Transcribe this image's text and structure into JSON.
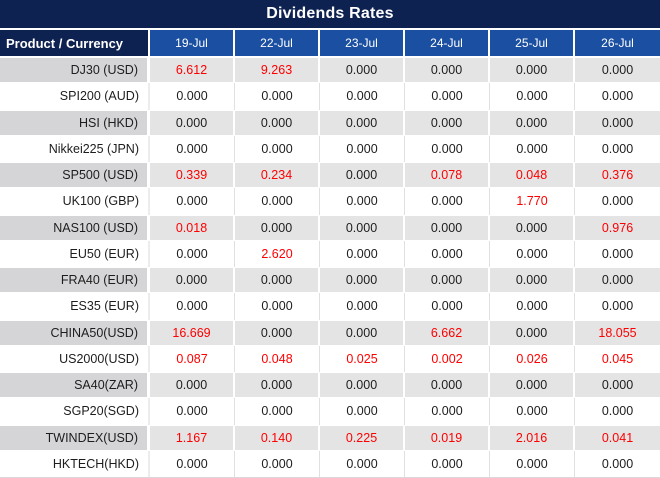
{
  "table": {
    "title": "Dividends Rates",
    "header": {
      "product_label": "Product / Currency",
      "dates": [
        "19-Jul",
        "22-Jul",
        "23-Jul",
        "24-Jul",
        "25-Jul",
        "26-Jul"
      ]
    },
    "rows": [
      {
        "product": "DJ30 (USD)",
        "values": [
          "6.612",
          "9.263",
          "0.000",
          "0.000",
          "0.000",
          "0.000"
        ]
      },
      {
        "product": "SPI200 (AUD)",
        "values": [
          "0.000",
          "0.000",
          "0.000",
          "0.000",
          "0.000",
          "0.000"
        ]
      },
      {
        "product": "HSI (HKD)",
        "values": [
          "0.000",
          "0.000",
          "0.000",
          "0.000",
          "0.000",
          "0.000"
        ]
      },
      {
        "product": "Nikkei225 (JPN)",
        "values": [
          "0.000",
          "0.000",
          "0.000",
          "0.000",
          "0.000",
          "0.000"
        ]
      },
      {
        "product": "SP500 (USD)",
        "values": [
          "0.339",
          "0.234",
          "0.000",
          "0.078",
          "0.048",
          "0.376"
        ]
      },
      {
        "product": "UK100 (GBP)",
        "values": [
          "0.000",
          "0.000",
          "0.000",
          "0.000",
          "1.770",
          "0.000"
        ]
      },
      {
        "product": "NAS100 (USD)",
        "values": [
          "0.018",
          "0.000",
          "0.000",
          "0.000",
          "0.000",
          "0.976"
        ]
      },
      {
        "product": "EU50 (EUR)",
        "values": [
          "0.000",
          "2.620",
          "0.000",
          "0.000",
          "0.000",
          "0.000"
        ]
      },
      {
        "product": "FRA40 (EUR)",
        "values": [
          "0.000",
          "0.000",
          "0.000",
          "0.000",
          "0.000",
          "0.000"
        ]
      },
      {
        "product": "ES35 (EUR)",
        "values": [
          "0.000",
          "0.000",
          "0.000",
          "0.000",
          "0.000",
          "0.000"
        ]
      },
      {
        "product": "CHINA50(USD)",
        "values": [
          "16.669",
          "0.000",
          "0.000",
          "6.662",
          "0.000",
          "18.055"
        ]
      },
      {
        "product": "US2000(USD)",
        "values": [
          "0.087",
          "0.048",
          "0.025",
          "0.002",
          "0.026",
          "0.045"
        ]
      },
      {
        "product": "SA40(ZAR)",
        "values": [
          "0.000",
          "0.000",
          "0.000",
          "0.000",
          "0.000",
          "0.000"
        ]
      },
      {
        "product": "SGP20(SGD)",
        "values": [
          "0.000",
          "0.000",
          "0.000",
          "0.000",
          "0.000",
          "0.000"
        ]
      },
      {
        "product": "TWINDEX(USD)",
        "values": [
          "1.167",
          "0.140",
          "0.225",
          "0.019",
          "2.016",
          "0.041"
        ]
      },
      {
        "product": "HKTECH(HKD)",
        "values": [
          "0.000",
          "0.000",
          "0.000",
          "0.000",
          "0.000",
          "0.000"
        ]
      }
    ],
    "colors": {
      "title_bg": "#0e2251",
      "header_bg": "#1b4fa1",
      "nonzero_value_red": "#fe0000",
      "zero_value_black": "#1d1d1d",
      "alt_row_product_bg": "#d5d5d8",
      "alt_row_value_bg": "#e4e4e4"
    }
  },
  "chart_data": {
    "type": "table",
    "title": "Dividends Rates",
    "columns": [
      "Product / Currency",
      "19-Jul",
      "22-Jul",
      "23-Jul",
      "24-Jul",
      "25-Jul",
      "26-Jul"
    ],
    "rows": [
      [
        "DJ30 (USD)",
        6.612,
        9.263,
        0.0,
        0.0,
        0.0,
        0.0
      ],
      [
        "SPI200 (AUD)",
        0.0,
        0.0,
        0.0,
        0.0,
        0.0,
        0.0
      ],
      [
        "HSI (HKD)",
        0.0,
        0.0,
        0.0,
        0.0,
        0.0,
        0.0
      ],
      [
        "Nikkei225 (JPN)",
        0.0,
        0.0,
        0.0,
        0.0,
        0.0,
        0.0
      ],
      [
        "SP500 (USD)",
        0.339,
        0.234,
        0.0,
        0.078,
        0.048,
        0.376
      ],
      [
        "UK100 (GBP)",
        0.0,
        0.0,
        0.0,
        0.0,
        1.77,
        0.0
      ],
      [
        "NAS100 (USD)",
        0.018,
        0.0,
        0.0,
        0.0,
        0.0,
        0.976
      ],
      [
        "EU50 (EUR)",
        0.0,
        2.62,
        0.0,
        0.0,
        0.0,
        0.0
      ],
      [
        "FRA40 (EUR)",
        0.0,
        0.0,
        0.0,
        0.0,
        0.0,
        0.0
      ],
      [
        "ES35 (EUR)",
        0.0,
        0.0,
        0.0,
        0.0,
        0.0,
        0.0
      ],
      [
        "CHINA50(USD)",
        16.669,
        0.0,
        0.0,
        6.662,
        0.0,
        18.055
      ],
      [
        "US2000(USD)",
        0.087,
        0.048,
        0.025,
        0.002,
        0.026,
        0.045
      ],
      [
        "SA40(ZAR)",
        0.0,
        0.0,
        0.0,
        0.0,
        0.0,
        0.0
      ],
      [
        "SGP20(SGD)",
        0.0,
        0.0,
        0.0,
        0.0,
        0.0,
        0.0
      ],
      [
        "TWINDEX(USD)",
        1.167,
        0.14,
        0.225,
        0.019,
        2.016,
        0.041
      ],
      [
        "HKTECH(HKD)",
        0.0,
        0.0,
        0.0,
        0.0,
        0.0,
        0.0
      ]
    ],
    "notes": "Non-zero values are rendered in red; zero values in black. Rows alternate gray/white starting with gray."
  }
}
